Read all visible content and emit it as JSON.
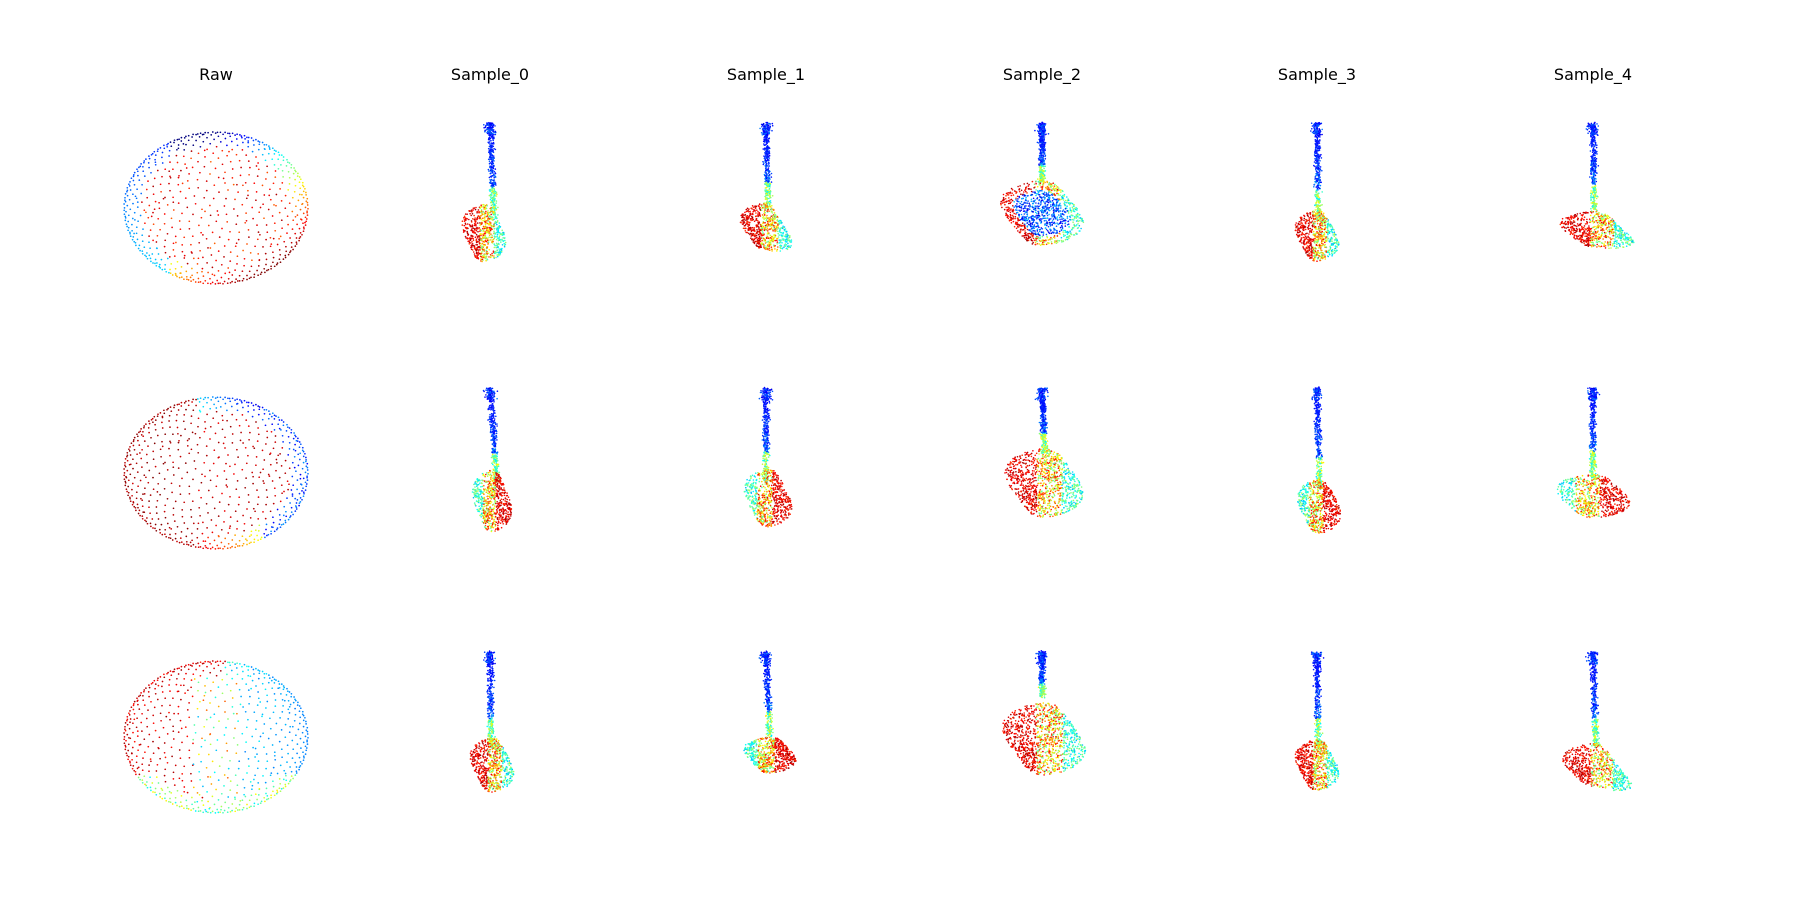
{
  "figure": {
    "columns": [
      {
        "title": "Raw",
        "kind": "sphere"
      },
      {
        "title": "Sample_0",
        "kind": "guitar"
      },
      {
        "title": "Sample_1",
        "kind": "guitar"
      },
      {
        "title": "Sample_2",
        "kind": "guitar"
      },
      {
        "title": "Sample_3",
        "kind": "guitar"
      },
      {
        "title": "Sample_4",
        "kind": "guitar"
      }
    ],
    "rows": 3,
    "colormap": "jet",
    "colormap_stops": [
      "#00007f",
      "#0000ff",
      "#007fff",
      "#00ffff",
      "#7fff7f",
      "#ffff00",
      "#ff7f00",
      "#ff0000",
      "#7f0000"
    ]
  }
}
